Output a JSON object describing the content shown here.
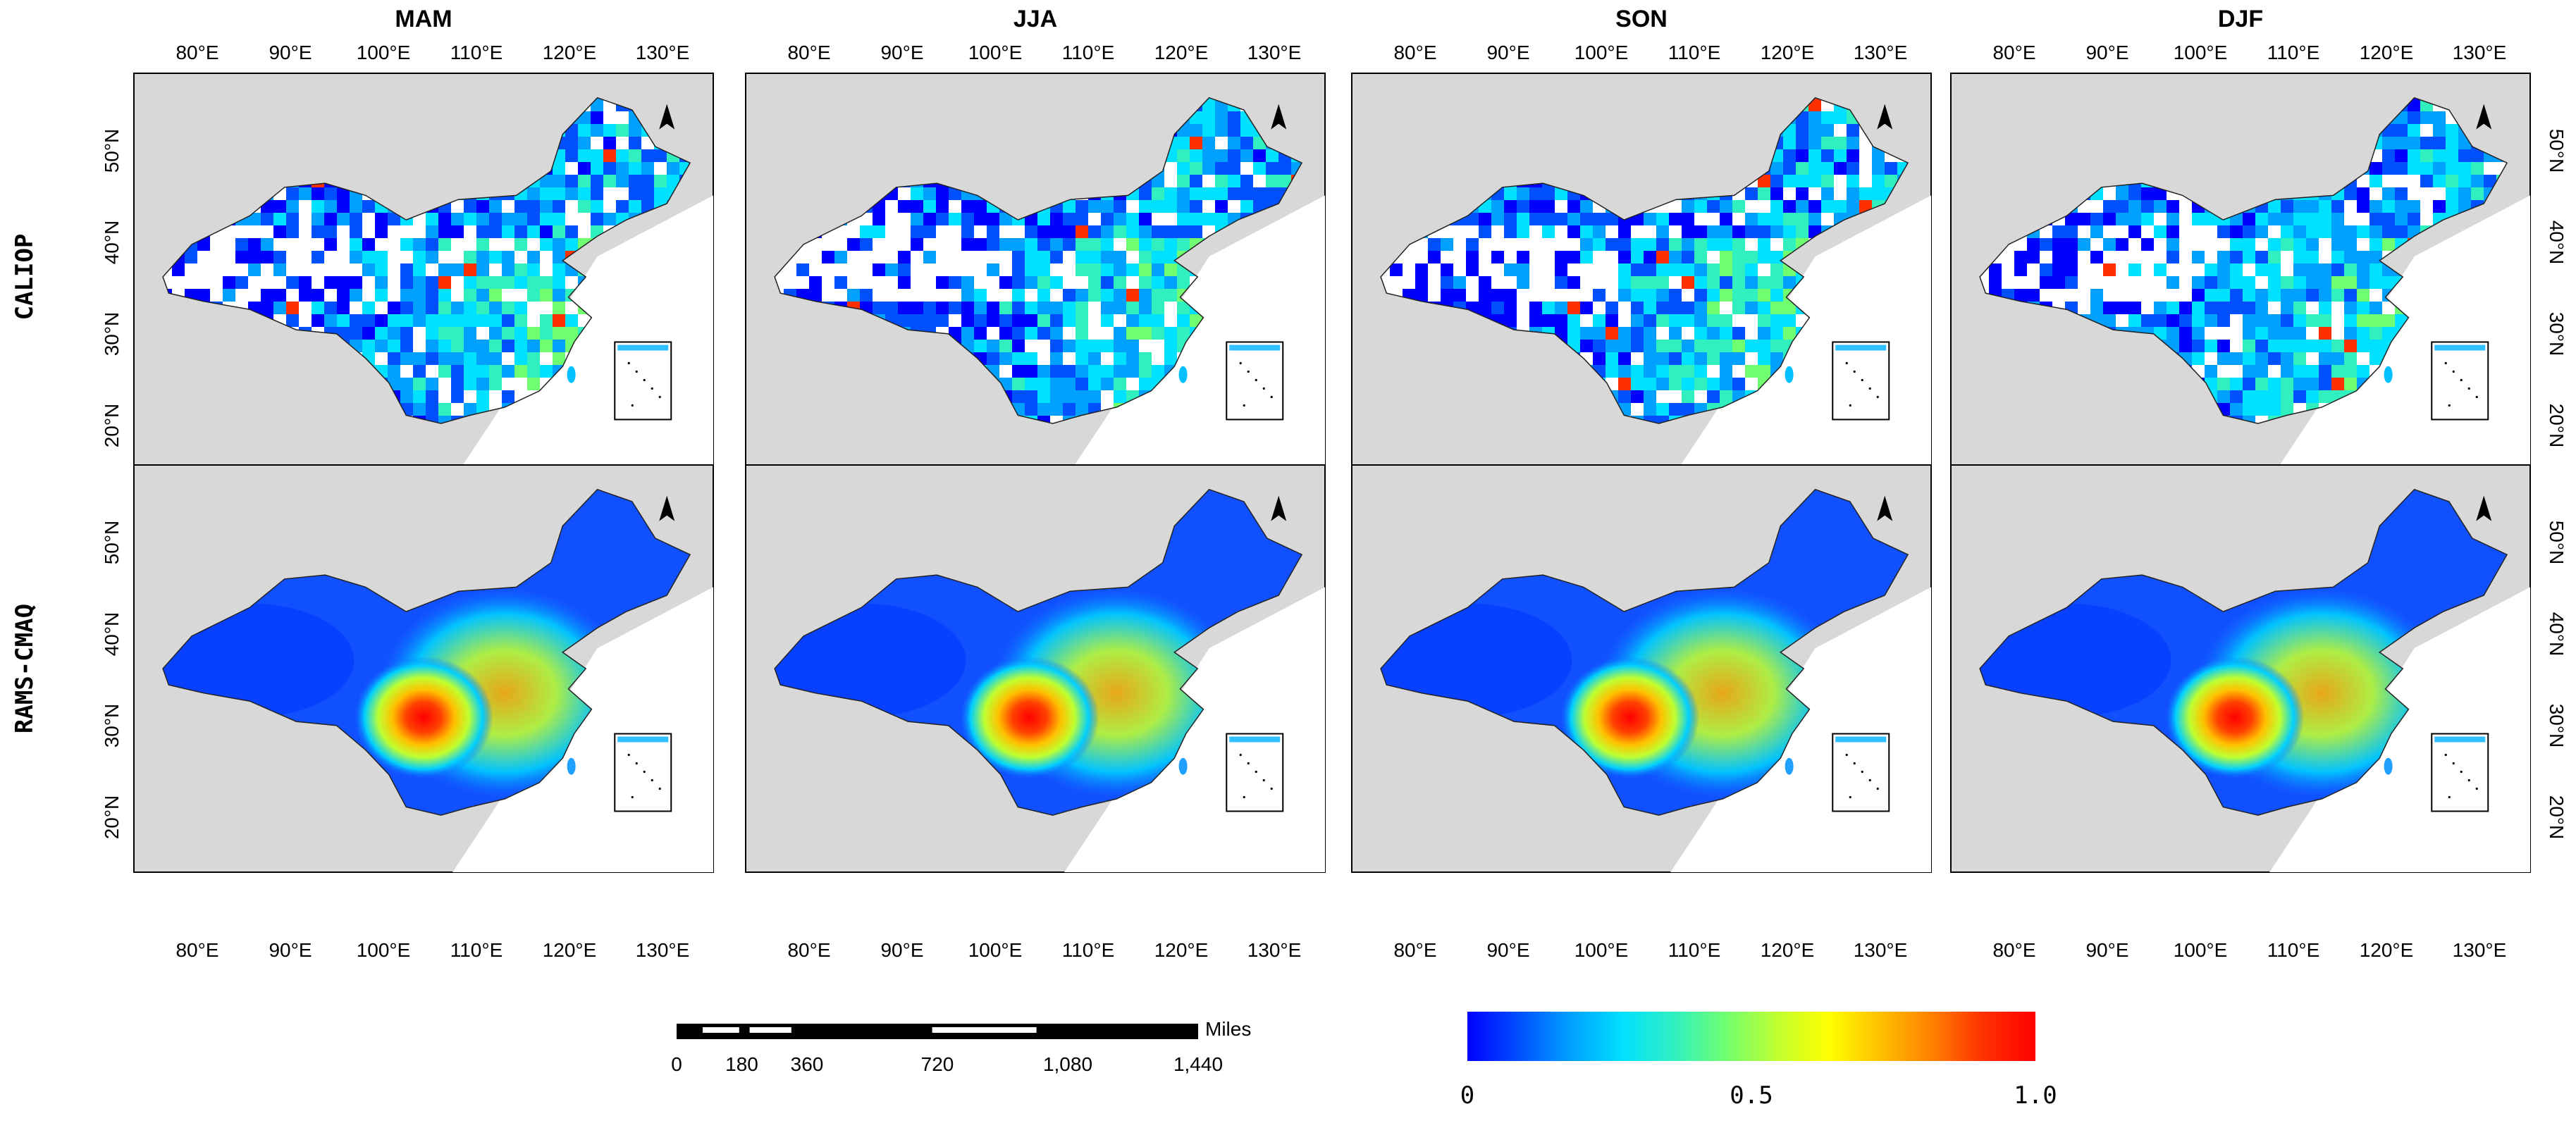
{
  "seasons": [
    "MAM",
    "JJA",
    "SON",
    "DJF"
  ],
  "rows": [
    "CALIOP",
    "RAMS-CMAQ"
  ],
  "lon_ticks": [
    "80°E",
    "90°E",
    "100°E",
    "110°E",
    "120°E",
    "130°E"
  ],
  "lat_ticks": [
    "50°N",
    "40°N",
    "30°N",
    "20°N"
  ],
  "scale_bar": {
    "unit": "Miles",
    "labels": [
      "0",
      "180",
      "360",
      "720",
      "1,080",
      "1,440"
    ]
  },
  "colorbar": {
    "labels": [
      "0",
      "0.5",
      "1.0"
    ],
    "min": 0,
    "max": 1.0,
    "colors": [
      "#0000ff",
      "#0050ff",
      "#00a0ff",
      "#00e0ff",
      "#30f0c0",
      "#70ff70",
      "#c0ff30",
      "#ffff00",
      "#ffc000",
      "#ff8000",
      "#ff3000",
      "#ff0000"
    ]
  },
  "colors": {
    "land_gray": "#d8d8d8",
    "border": "#000000"
  },
  "icons": [
    "north-arrow-icon"
  ]
}
